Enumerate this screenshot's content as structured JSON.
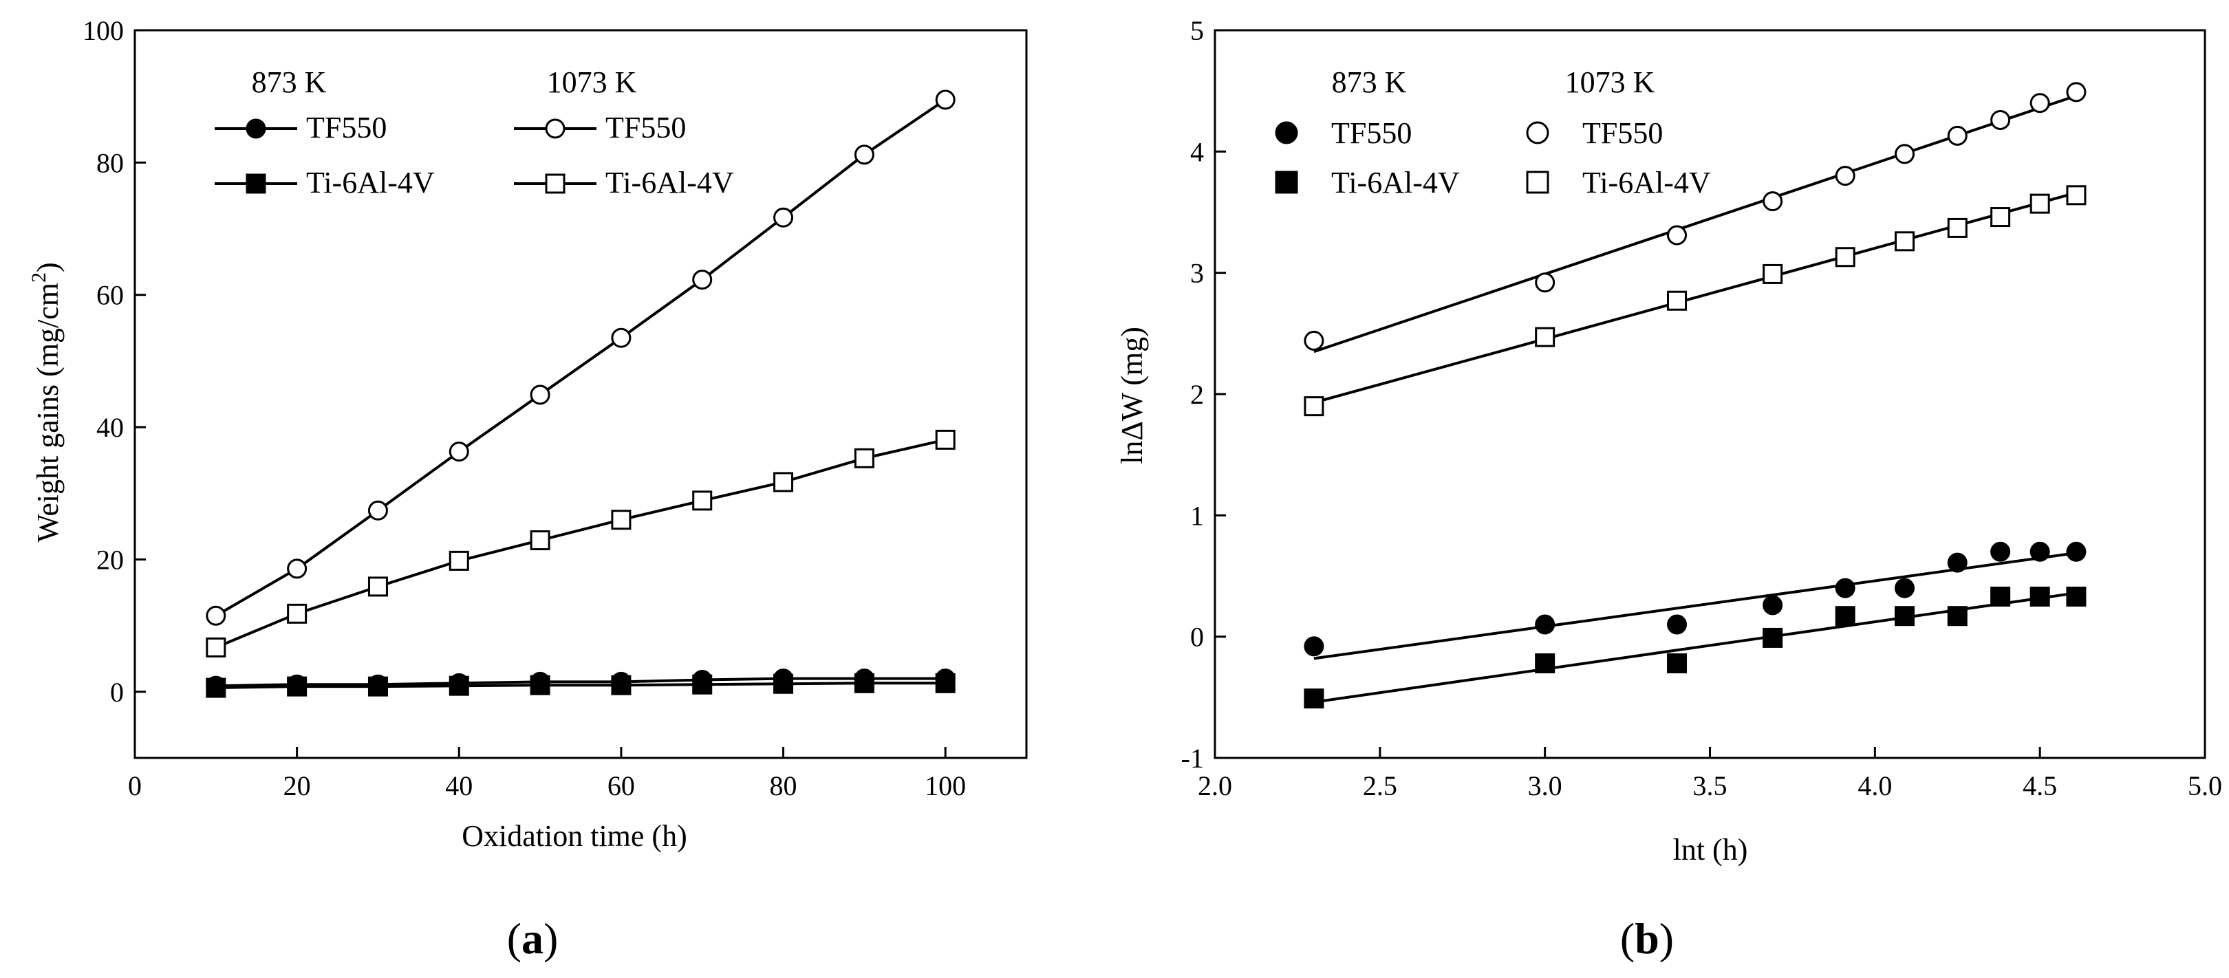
{
  "figure": {
    "panel_a_label": "a",
    "panel_b_label": "b"
  },
  "chart_data": [
    {
      "type": "line",
      "panel": "a",
      "title": "",
      "xlabel": "Oxidation time (h)",
      "ylabel": "Weight gains (mg/cm",
      "ylabel_sup": "2",
      "ylabel_tail": ")",
      "xlim": [
        0,
        110
      ],
      "ylim": [
        -10,
        100
      ],
      "xticks": [
        0,
        20,
        40,
        60,
        80,
        100
      ],
      "yticks": [
        0,
        20,
        40,
        60,
        80,
        100
      ],
      "grid": false,
      "legend": {
        "position": "top-left",
        "headers": [
          "873 K",
          "1073 K"
        ],
        "entries": [
          {
            "temp": "873 K",
            "label": "TF550",
            "marker": "filled-circle"
          },
          {
            "temp": "1073 K",
            "label": "TF550",
            "marker": "open-circle"
          },
          {
            "temp": "873 K",
            "label": "Ti-6Al-4V",
            "marker": "filled-square"
          },
          {
            "temp": "1073 K",
            "label": "Ti-6Al-4V",
            "marker": "open-square"
          }
        ]
      },
      "x": [
        10,
        20,
        30,
        40,
        50,
        60,
        70,
        80,
        90,
        100
      ],
      "series": [
        {
          "name": "TF550 873 K",
          "marker": "filled-circle",
          "values": [
            0.9,
            1.1,
            1.1,
            1.3,
            1.5,
            1.5,
            1.8,
            2.0,
            2.0,
            2.0
          ]
        },
        {
          "name": "TF550 1073 K",
          "marker": "open-circle",
          "values": [
            11.5,
            18.6,
            27.4,
            36.3,
            44.9,
            53.5,
            62.3,
            71.7,
            81.2,
            89.5
          ]
        },
        {
          "name": "Ti-6Al-4V 873 K",
          "marker": "filled-square",
          "values": [
            0.6,
            0.8,
            0.8,
            0.9,
            1.0,
            1.0,
            1.1,
            1.2,
            1.3,
            1.3
          ]
        },
        {
          "name": "Ti-6Al-4V 1073 K",
          "marker": "open-square",
          "values": [
            6.7,
            11.8,
            15.9,
            19.8,
            22.9,
            26.0,
            28.9,
            31.7,
            35.3,
            38.1
          ]
        }
      ]
    },
    {
      "type": "scatter",
      "panel": "b",
      "title": "",
      "xlabel": "lnt (h)",
      "ylabel": "lnΔW (mg)",
      "xlim": [
        2.0,
        5.0
      ],
      "ylim": [
        -1,
        5
      ],
      "xticks": [
        "2.0",
        "2.5",
        "3.0",
        "3.5",
        "4.0",
        "4.5",
        "5.0"
      ],
      "yticks": [
        "-1",
        "0",
        "1",
        "2",
        "3",
        "4",
        "5"
      ],
      "grid": false,
      "legend": {
        "position": "top-left",
        "headers": [
          "873 K",
          "1073 K"
        ],
        "entries": [
          {
            "temp": "873 K",
            "label": "TF550",
            "marker": "filled-circle"
          },
          {
            "temp": "1073 K",
            "label": "TF550",
            "marker": "open-circle"
          },
          {
            "temp": "873 K",
            "label": "Ti-6Al-4V",
            "marker": "filled-square"
          },
          {
            "temp": "1073 K",
            "label": "Ti-6Al-4V",
            "marker": "open-square"
          }
        ]
      },
      "x": [
        2.3,
        3.0,
        3.4,
        3.69,
        3.91,
        4.09,
        4.25,
        4.38,
        4.5,
        4.61
      ],
      "series": [
        {
          "name": "TF550 873 K",
          "marker": "filled-circle",
          "values": [
            -0.08,
            0.1,
            0.1,
            0.26,
            0.4,
            0.4,
            0.61,
            0.7,
            0.7,
            0.7
          ],
          "fit": [
            [
              2.3,
              -0.18
            ],
            [
              4.61,
              0.69
            ]
          ]
        },
        {
          "name": "TF550 1073 K",
          "marker": "open-circle",
          "values": [
            2.44,
            2.92,
            3.31,
            3.59,
            3.8,
            3.98,
            4.13,
            4.26,
            4.4,
            4.49
          ],
          "fit": [
            [
              2.3,
              2.35
            ],
            [
              4.61,
              4.46
            ]
          ]
        },
        {
          "name": "Ti-6Al-4V 873 K",
          "marker": "filled-square",
          "values": [
            -0.51,
            -0.22,
            -0.22,
            -0.01,
            0.17,
            0.17,
            0.17,
            0.33,
            0.33,
            0.33
          ],
          "fit": [
            [
              2.3,
              -0.54
            ],
            [
              4.61,
              0.36
            ]
          ]
        },
        {
          "name": "Ti-6Al-4V 1073 K",
          "marker": "open-square",
          "values": [
            1.9,
            2.47,
            2.77,
            2.99,
            3.13,
            3.26,
            3.37,
            3.46,
            3.57,
            3.64
          ],
          "fit": [
            [
              2.3,
              1.93
            ],
            [
              4.61,
              3.66
            ]
          ]
        }
      ]
    }
  ]
}
